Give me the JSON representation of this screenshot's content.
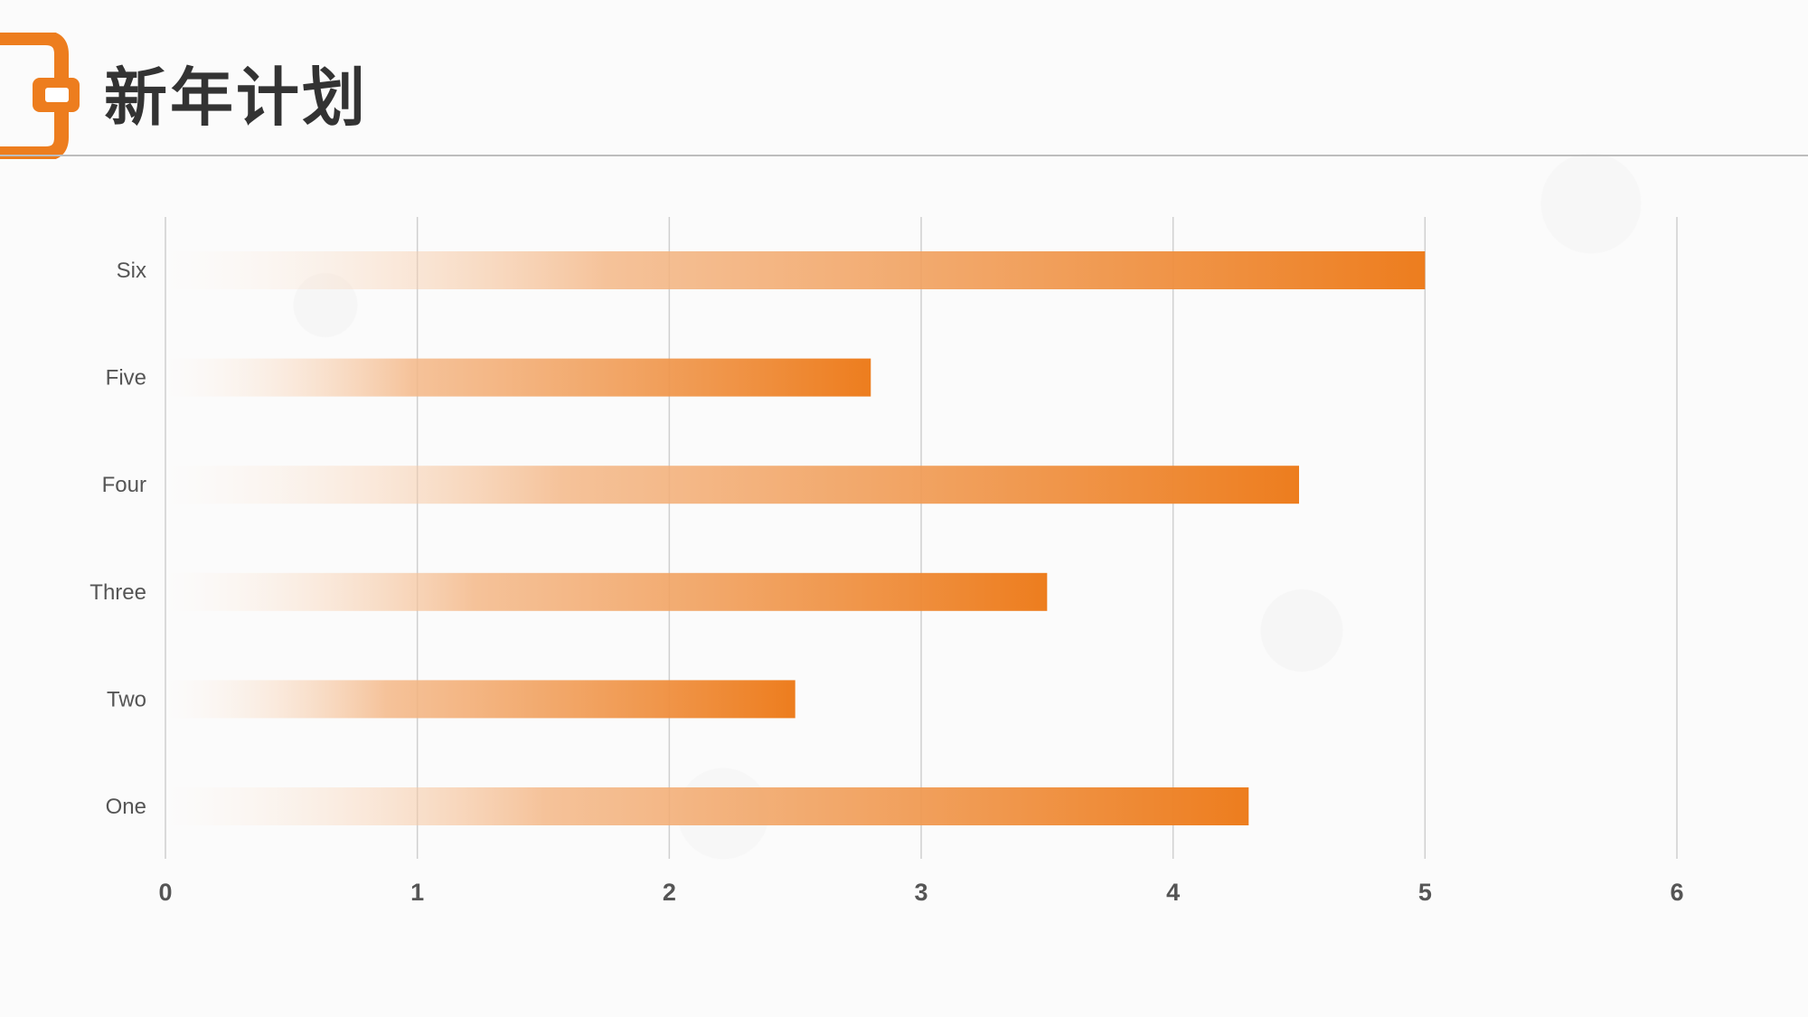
{
  "title": "新年计划",
  "colors": {
    "accent": "#ED7D1E",
    "bar_light": "#FCEBDD",
    "gridline": "#cfcfcf",
    "text": "#333333"
  },
  "chart_data": {
    "type": "bar",
    "orientation": "horizontal",
    "categories": [
      "One",
      "Two",
      "Three",
      "Four",
      "Five",
      "Six"
    ],
    "values": [
      4.3,
      2.5,
      3.5,
      4.5,
      2.8,
      5.0
    ],
    "xlim": [
      0,
      6
    ],
    "xticks": [
      "0",
      "1",
      "2",
      "3",
      "4",
      "5",
      "6"
    ],
    "grid": true,
    "legend": "none"
  }
}
